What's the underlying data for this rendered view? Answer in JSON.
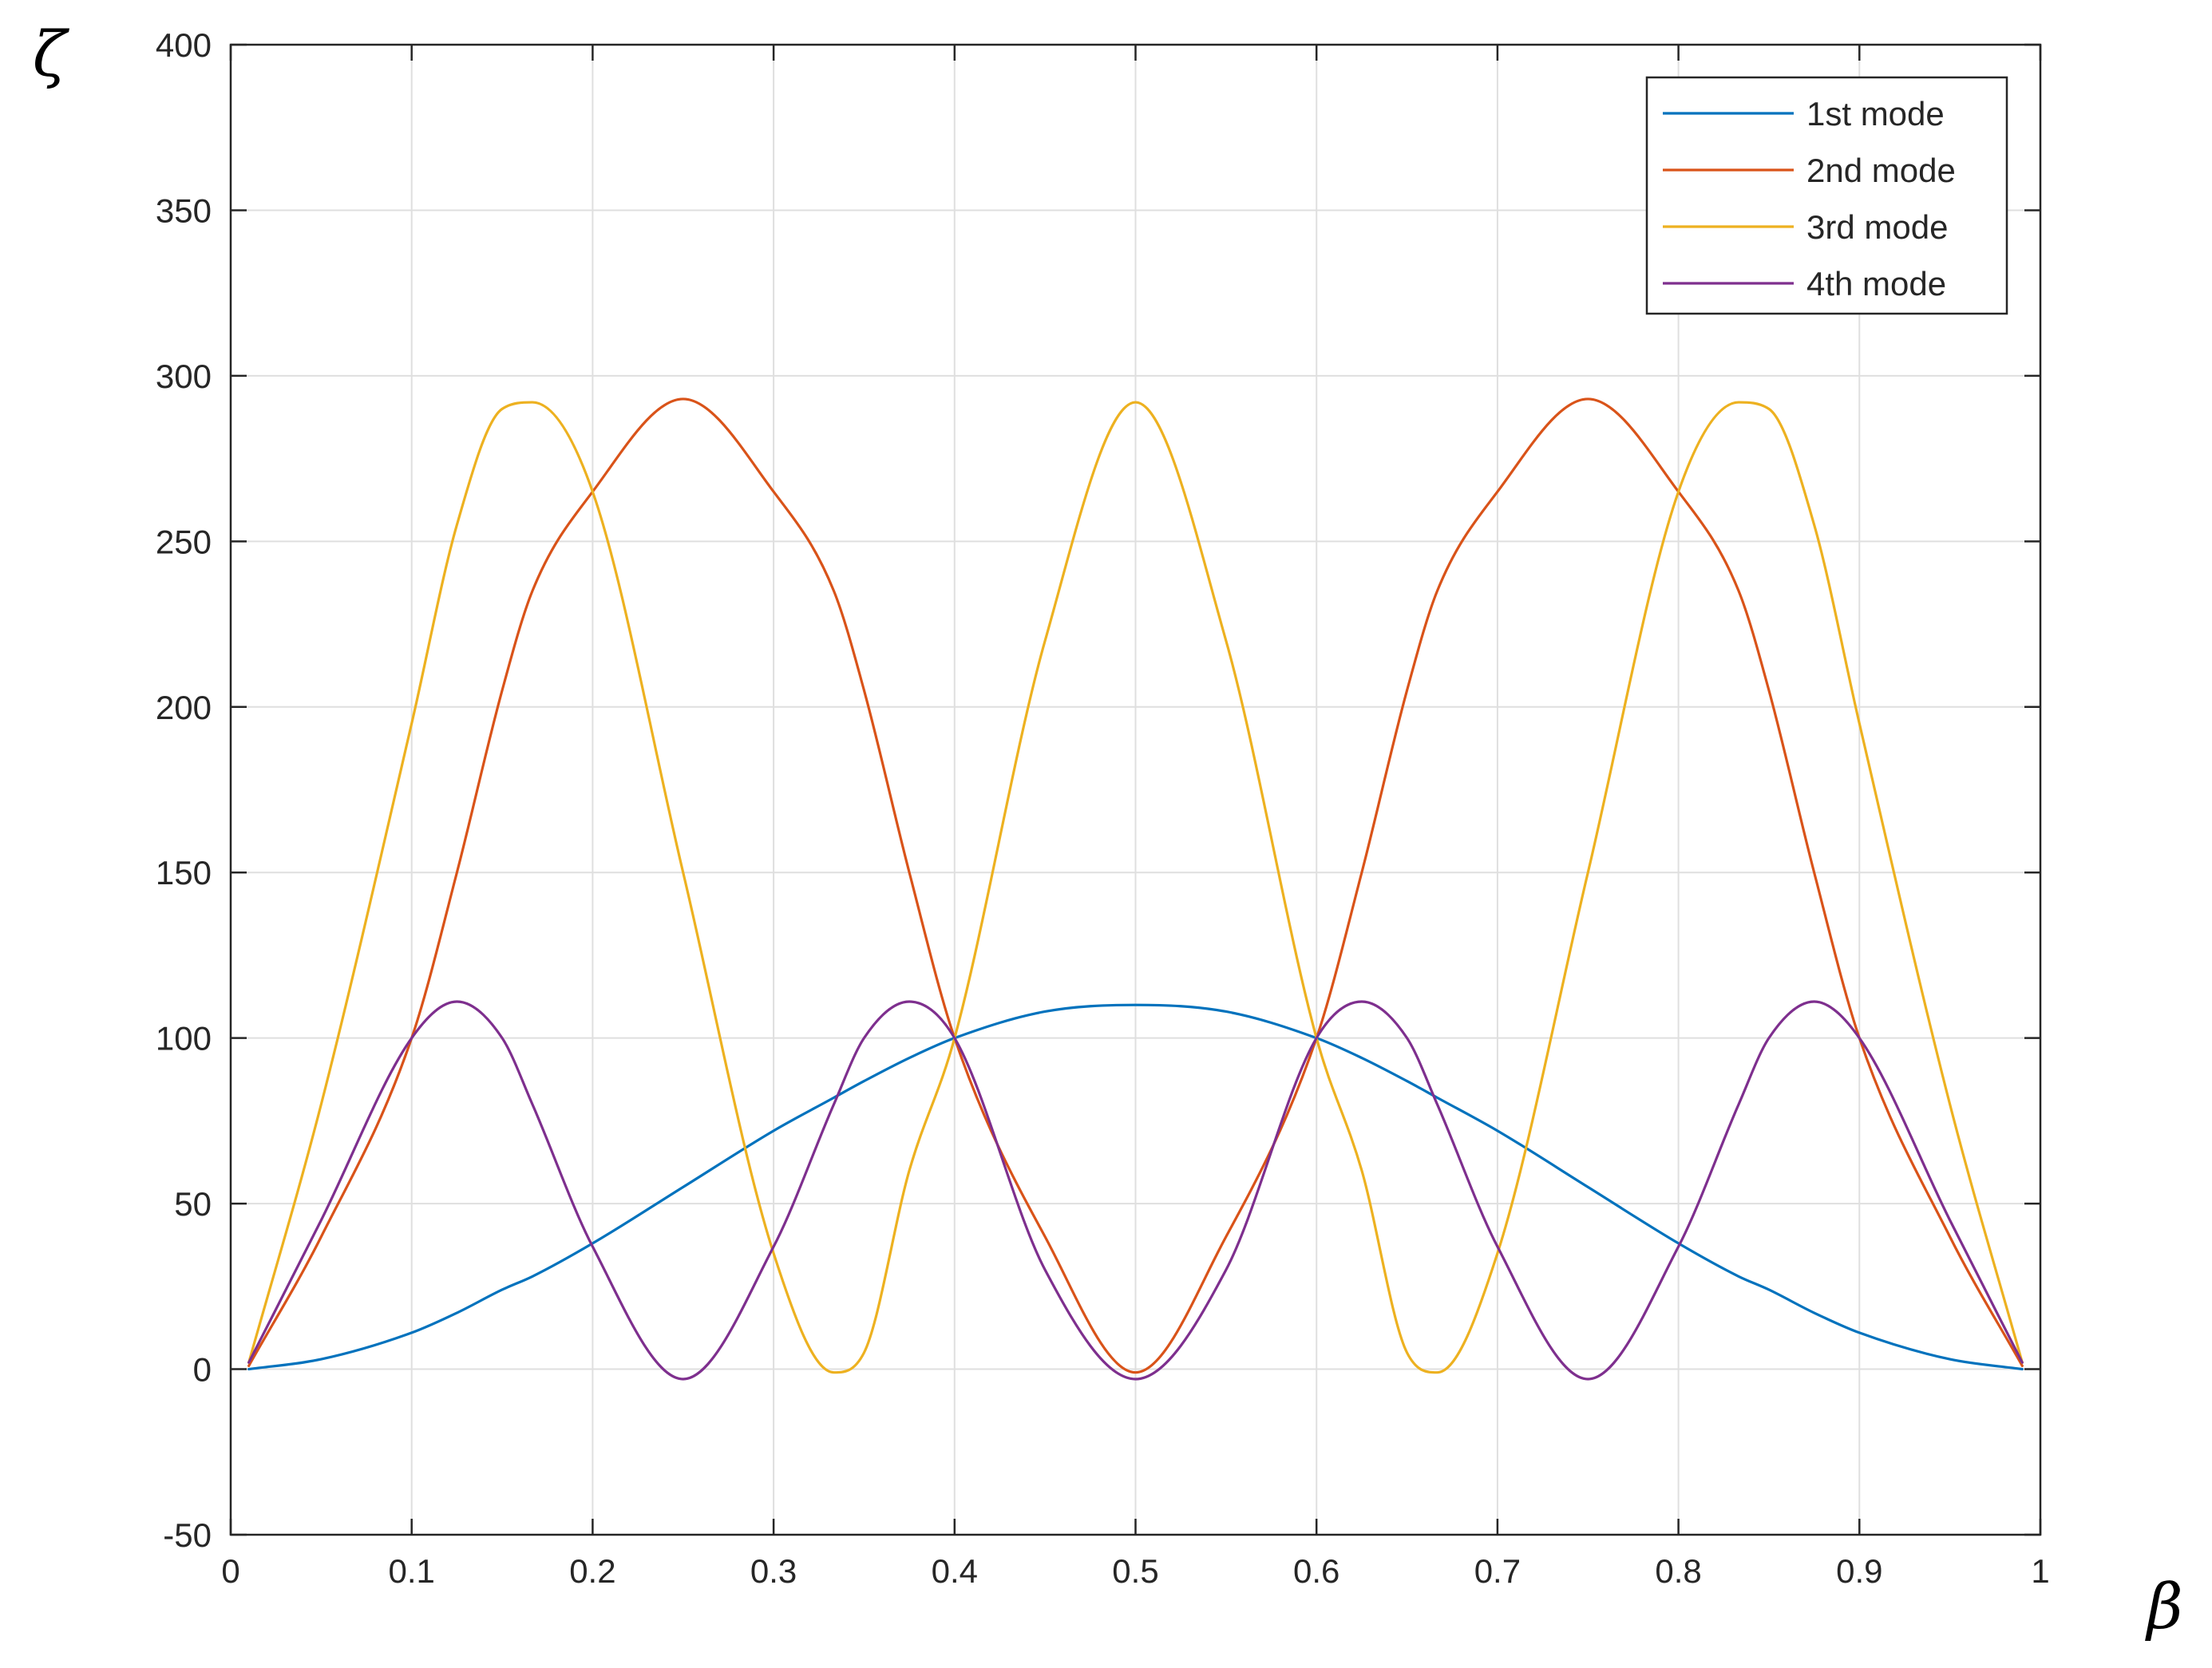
{
  "chart_data": {
    "type": "line",
    "title": "",
    "xlabel": "β",
    "ylabel": "ζ",
    "xlim": [
      0,
      1
    ],
    "ylim": [
      -50,
      400
    ],
    "xticks": [
      0,
      0.1,
      0.2,
      0.3,
      0.4,
      0.5,
      0.6,
      0.7,
      0.8,
      0.9,
      1
    ],
    "xtick_labels": [
      "0",
      "0.1",
      "0.2",
      "0.3",
      "0.4",
      "0.5",
      "0.6",
      "0.7",
      "0.8",
      "0.9",
      "1"
    ],
    "yticks": [
      -50,
      0,
      50,
      100,
      150,
      200,
      250,
      300,
      350,
      400
    ],
    "ytick_labels": [
      "-50",
      "0",
      "50",
      "100",
      "150",
      "200",
      "250",
      "300",
      "350",
      "400"
    ],
    "grid": true,
    "legend_position": "top-right",
    "x": [
      0.01,
      0.05,
      0.1,
      0.125,
      0.15,
      0.1667,
      0.2,
      0.25,
      0.3,
      0.3333,
      0.35,
      0.375,
      0.4,
      0.45,
      0.5,
      0.55,
      0.6,
      0.625,
      0.65,
      0.6667,
      0.7,
      0.75,
      0.8,
      0.8333,
      0.85,
      0.875,
      0.9,
      0.95,
      0.99
    ],
    "series": [
      {
        "name": "1st mode",
        "color": "#0072BD",
        "values": [
          0.0,
          3,
          11,
          17,
          24,
          28,
          38,
          55,
          72,
          82,
          87,
          94,
          100,
          108,
          110,
          108,
          100,
          94,
          87,
          82,
          72,
          55,
          38,
          28,
          24,
          17,
          11,
          3,
          0.0
        ]
      },
      {
        "name": "2nd mode",
        "color": "#D95319",
        "values": [
          1,
          40,
          100,
          150,
          205,
          235,
          265,
          293,
          265,
          235,
          205,
          150,
          100,
          40,
          -1,
          40,
          100,
          150,
          205,
          235,
          265,
          293,
          265,
          235,
          205,
          150,
          100,
          40,
          1
        ]
      },
      {
        "name": "3rd mode",
        "color": "#EDB120",
        "values": [
          2,
          80,
          195,
          255,
          290,
          292,
          265,
          150,
          35,
          -1,
          5,
          60,
          100,
          220,
          292,
          220,
          100,
          60,
          5,
          -1,
          35,
          150,
          265,
          292,
          290,
          255,
          195,
          80,
          2
        ]
      },
      {
        "name": "4th mode",
        "color": "#7E2F8E",
        "values": [
          2,
          45,
          100,
          111,
          100,
          80,
          37,
          -3,
          37,
          80,
          100,
          111,
          100,
          30,
          -3,
          30,
          100,
          111,
          100,
          80,
          37,
          -3,
          37,
          80,
          100,
          111,
          100,
          45,
          2
        ]
      }
    ]
  }
}
